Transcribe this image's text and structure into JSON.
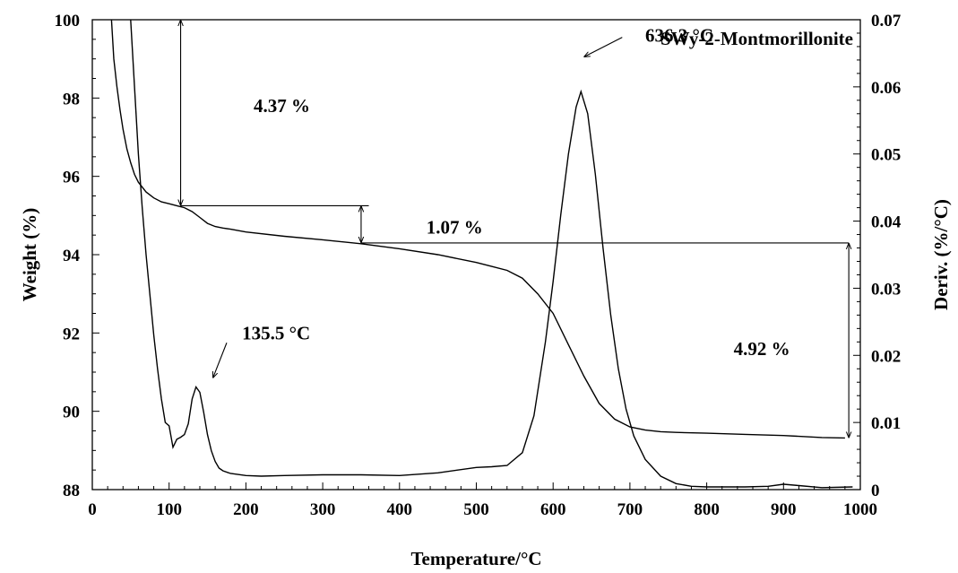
{
  "chart_data": {
    "type": "line",
    "title": "SWy-2-Montmorillonite",
    "xlabel": "Temperature/°C",
    "ylabel_left": "Weight (%)",
    "ylabel_right": "Deriv. (%/°C)",
    "xlim": [
      0,
      1000
    ],
    "ylim_left": [
      88,
      100
    ],
    "ylim_right": [
      0,
      0.07
    ],
    "x_ticks": [
      "0",
      "100",
      "200",
      "300",
      "400",
      "500",
      "600",
      "700",
      "800",
      "900",
      "1000"
    ],
    "y_left_ticks": [
      "88",
      "90",
      "92",
      "94",
      "96",
      "98",
      "100"
    ],
    "y_right_ticks": [
      "0",
      "0.01",
      "0.02",
      "0.03",
      "0.04",
      "0.05",
      "0.06",
      "0.07"
    ],
    "grid": false,
    "series": [
      {
        "axis": "left",
        "x": [
          25,
          28,
          32,
          36,
          40,
          45,
          50,
          55,
          60,
          70,
          80,
          90,
          100,
          110,
          120,
          130,
          140,
          150,
          160,
          170,
          180,
          200,
          250,
          300,
          350,
          400,
          450,
          500,
          520,
          540,
          560,
          580,
          600,
          620,
          640,
          660,
          680,
          700,
          720,
          740,
          760,
          800,
          850,
          900,
          950,
          980
        ],
        "y": [
          100,
          99.0,
          98.3,
          97.7,
          97.2,
          96.7,
          96.35,
          96.05,
          95.85,
          95.6,
          95.45,
          95.35,
          95.3,
          95.25,
          95.2,
          95.1,
          94.95,
          94.8,
          94.72,
          94.68,
          94.65,
          94.58,
          94.47,
          94.38,
          94.28,
          94.15,
          94.0,
          93.8,
          93.7,
          93.6,
          93.4,
          93.0,
          92.5,
          91.7,
          90.9,
          90.2,
          89.8,
          89.6,
          89.52,
          89.48,
          89.46,
          89.44,
          89.41,
          89.38,
          89.33,
          89.32
        ]
      },
      {
        "axis": "right",
        "x": [
          50,
          55,
          60,
          65,
          70,
          75,
          80,
          85,
          90,
          95,
          100,
          105,
          110,
          115,
          120,
          125,
          130,
          135,
          140,
          145,
          150,
          155,
          160,
          165,
          170,
          180,
          200,
          220,
          250,
          300,
          350,
          400,
          450,
          500,
          520,
          540,
          560,
          575,
          590,
          600,
          610,
          620,
          630,
          636.3,
          645,
          655,
          665,
          675,
          685,
          695,
          705,
          720,
          740,
          760,
          780,
          800,
          850,
          880,
          900,
          920,
          950,
          990
        ],
        "y": [
          0.07,
          0.06,
          0.05,
          0.042,
          0.035,
          0.029,
          0.023,
          0.018,
          0.0135,
          0.01,
          0.0095,
          0.0063,
          0.0075,
          0.0078,
          0.0082,
          0.0098,
          0.0135,
          0.0153,
          0.0145,
          0.0115,
          0.0082,
          0.0058,
          0.0042,
          0.0032,
          0.0028,
          0.0024,
          0.0021,
          0.002,
          0.0021,
          0.0022,
          0.0022,
          0.0021,
          0.0025,
          0.0033,
          0.0034,
          0.0036,
          0.0055,
          0.011,
          0.022,
          0.031,
          0.041,
          0.05,
          0.057,
          0.0593,
          0.056,
          0.047,
          0.036,
          0.026,
          0.018,
          0.012,
          0.008,
          0.0045,
          0.002,
          0.0009,
          0.0005,
          0.0004,
          0.0004,
          0.0005,
          0.0008,
          0.0006,
          0.0003,
          0.0004
        ]
      }
    ],
    "annotations": [
      {
        "text": "4.37 %",
        "x": 210,
        "y_left": 97.8
      },
      {
        "text": "1.07 %",
        "x": 435,
        "y_left": 94.7
      },
      {
        "text": "4.92 %",
        "x": 835,
        "y_left": 91.6
      },
      {
        "text": "135.5 °C",
        "x": 195,
        "y_left": 92.0
      },
      {
        "text": "636.3 °C",
        "x": 720,
        "y_left": 99.6
      }
    ],
    "reference_lines": [
      {
        "y_left": 95.25,
        "x_from": 115,
        "x_to": 360
      },
      {
        "y_left": 94.3,
        "x_from": 350,
        "x_to": 985
      }
    ],
    "double_arrows": [
      {
        "x": 115,
        "y_from": 100,
        "y_to": 95.25
      },
      {
        "x": 350,
        "y_from": 95.25,
        "y_to": 94.3
      },
      {
        "x": 985,
        "y_from": 94.3,
        "y_to": 89.32
      }
    ],
    "pointer_arrows": [
      {
        "from_x": 175,
        "from_y_left": 91.75,
        "to_x": 157,
        "to_y_left": 90.85
      },
      {
        "from_x": 690,
        "from_y_left": 99.55,
        "to_x": 640,
        "to_y_left": 99.05
      }
    ]
  }
}
